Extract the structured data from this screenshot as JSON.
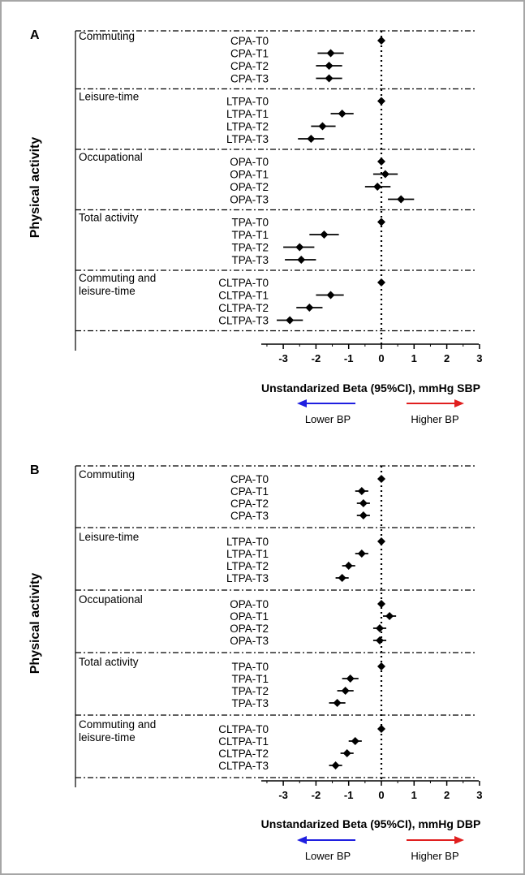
{
  "chart_data": [
    {
      "type": "forest",
      "panel": "A",
      "ylabel": "Physical activity",
      "xlabel": "Unstandarized Beta (95%CI), mmHg SBP",
      "xticks": [
        -3,
        -2,
        -1,
        0,
        1,
        2,
        3
      ],
      "xlim": [
        -3.5,
        3
      ],
      "arrow_left": {
        "label": "Lower BP",
        "color": "#1f1fe0"
      },
      "arrow_right": {
        "label": "Higher BP",
        "color": "#e01f1f"
      },
      "groups": [
        {
          "name": "Commuting",
          "rows": [
            {
              "label": "CPA-T0",
              "est": 0.0,
              "lo": 0.0,
              "hi": 0.0
            },
            {
              "label": "CPA-T1",
              "est": -1.55,
              "lo": -1.95,
              "hi": -1.15
            },
            {
              "label": "CPA-T2",
              "est": -1.6,
              "lo": -2.0,
              "hi": -1.2
            },
            {
              "label": "CPA-T3",
              "est": -1.6,
              "lo": -2.0,
              "hi": -1.2
            }
          ]
        },
        {
          "name": "Leisure-time",
          "rows": [
            {
              "label": "LTPA-T0",
              "est": 0.0,
              "lo": 0.0,
              "hi": 0.0
            },
            {
              "label": "LTPA-T1",
              "est": -1.2,
              "lo": -1.55,
              "hi": -0.85
            },
            {
              "label": "LTPA-T2",
              "est": -1.8,
              "lo": -2.15,
              "hi": -1.4
            },
            {
              "label": "LTPA-T3",
              "est": -2.15,
              "lo": -2.55,
              "hi": -1.75
            }
          ]
        },
        {
          "name": "Occupational",
          "rows": [
            {
              "label": "OPA-T0",
              "est": 0.0,
              "lo": 0.0,
              "hi": 0.0
            },
            {
              "label": "OPA-T1",
              "est": 0.12,
              "lo": -0.25,
              "hi": 0.5
            },
            {
              "label": "OPA-T2",
              "est": -0.12,
              "lo": -0.5,
              "hi": 0.28
            },
            {
              "label": "OPA-T3",
              "est": 0.6,
              "lo": 0.2,
              "hi": 1.0
            }
          ]
        },
        {
          "name": "Total activity",
          "rows": [
            {
              "label": "TPA-T0",
              "est": 0.0,
              "lo": 0.0,
              "hi": 0.0
            },
            {
              "label": "TPA-T1",
              "est": -1.75,
              "lo": -2.2,
              "hi": -1.3
            },
            {
              "label": "TPA-T2",
              "est": -2.5,
              "lo": -3.0,
              "hi": -2.05
            },
            {
              "label": "TPA-T3",
              "est": -2.45,
              "lo": -2.95,
              "hi": -2.0
            }
          ]
        },
        {
          "name": "Commuting and leisure-time",
          "rows": [
            {
              "label": "CLTPA-T0",
              "est": 0.0,
              "lo": 0.0,
              "hi": 0.0
            },
            {
              "label": "CLTPA-T1",
              "est": -1.55,
              "lo": -2.0,
              "hi": -1.15
            },
            {
              "label": "CLTPA-T2",
              "est": -2.2,
              "lo": -2.6,
              "hi": -1.8
            },
            {
              "label": "CLTPA-T3",
              "est": -2.8,
              "lo": -3.2,
              "hi": -2.4
            }
          ]
        }
      ]
    },
    {
      "type": "forest",
      "panel": "B",
      "ylabel": "Physical activity",
      "xlabel": "Unstandarized Beta (95%CI), mmHg DBP",
      "xticks": [
        -3,
        -2,
        -1,
        0,
        1,
        2,
        3
      ],
      "xlim": [
        -3.5,
        3
      ],
      "arrow_left": {
        "label": "Lower BP",
        "color": "#1f1fe0"
      },
      "arrow_right": {
        "label": "Higher BP",
        "color": "#e01f1f"
      },
      "groups": [
        {
          "name": "Commuting",
          "rows": [
            {
              "label": "CPA-T0",
              "est": 0.0,
              "lo": 0.0,
              "hi": 0.0
            },
            {
              "label": "CPA-T1",
              "est": -0.6,
              "lo": -0.8,
              "hi": -0.4
            },
            {
              "label": "CPA-T2",
              "est": -0.55,
              "lo": -0.75,
              "hi": -0.35
            },
            {
              "label": "CPA-T3",
              "est": -0.55,
              "lo": -0.75,
              "hi": -0.35
            }
          ]
        },
        {
          "name": "Leisure-time",
          "rows": [
            {
              "label": "LTPA-T0",
              "est": 0.0,
              "lo": 0.0,
              "hi": 0.0
            },
            {
              "label": "LTPA-T1",
              "est": -0.6,
              "lo": -0.8,
              "hi": -0.4
            },
            {
              "label": "LTPA-T2",
              "est": -1.0,
              "lo": -1.2,
              "hi": -0.8
            },
            {
              "label": "LTPA-T3",
              "est": -1.2,
              "lo": -1.4,
              "hi": -1.0
            }
          ]
        },
        {
          "name": "Occupational",
          "rows": [
            {
              "label": "OPA-T0",
              "est": 0.0,
              "lo": -0.1,
              "hi": 0.1
            },
            {
              "label": "OPA-T1",
              "est": 0.25,
              "lo": 0.05,
              "hi": 0.45
            },
            {
              "label": "OPA-T2",
              "est": -0.05,
              "lo": -0.25,
              "hi": 0.15
            },
            {
              "label": "OPA-T3",
              "est": -0.05,
              "lo": -0.25,
              "hi": 0.15
            }
          ]
        },
        {
          "name": "Total activity",
          "rows": [
            {
              "label": "TPA-T0",
              "est": 0.0,
              "lo": 0.0,
              "hi": 0.0
            },
            {
              "label": "TPA-T1",
              "est": -0.95,
              "lo": -1.2,
              "hi": -0.7
            },
            {
              "label": "TPA-T2",
              "est": -1.1,
              "lo": -1.35,
              "hi": -0.85
            },
            {
              "label": "TPA-T3",
              "est": -1.35,
              "lo": -1.6,
              "hi": -1.1
            }
          ]
        },
        {
          "name": "Commuting and leisure-time",
          "rows": [
            {
              "label": "CLTPA-T0",
              "est": 0.0,
              "lo": 0.0,
              "hi": 0.0
            },
            {
              "label": "CLTPA-T1",
              "est": -0.8,
              "lo": -1.0,
              "hi": -0.6
            },
            {
              "label": "CLTPA-T2",
              "est": -1.05,
              "lo": -1.25,
              "hi": -0.85
            },
            {
              "label": "CLTPA-T3",
              "est": -1.4,
              "lo": -1.6,
              "hi": -1.2
            }
          ]
        }
      ]
    }
  ]
}
